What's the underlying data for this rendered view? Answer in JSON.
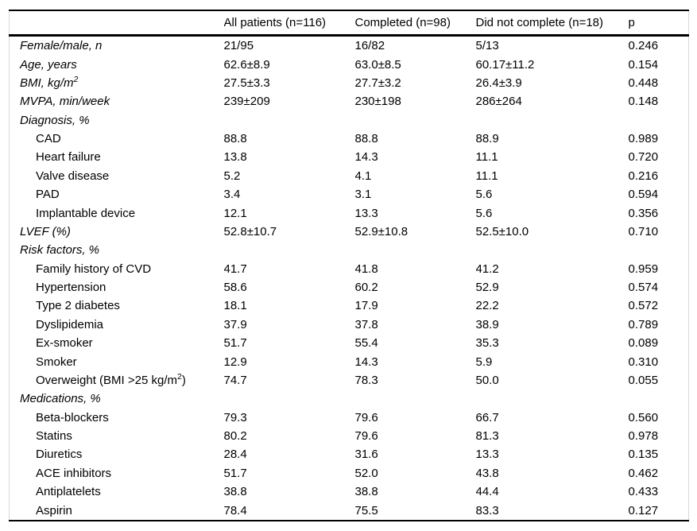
{
  "colors": {
    "rule": "#000000",
    "faint_border": "#d8d8d8",
    "text": "#000000",
    "background": "#ffffff"
  },
  "table": {
    "columns": [
      "",
      "All patients (n=116)",
      "Completed (n=98)",
      "Did not complete (n=18)",
      "p"
    ],
    "rows": [
      {
        "label": "Female/male, n",
        "kind": "param",
        "values": [
          "21/95",
          "16/82",
          "5/13",
          "0.246"
        ]
      },
      {
        "label": "Age, years",
        "kind": "param",
        "values": [
          "62.6±8.9",
          "63.0±8.5",
          "60.17±11.2",
          "0.154"
        ]
      },
      {
        "label": "BMI, kg/m^2^",
        "kind": "param",
        "values": [
          "27.5±3.3",
          "27.7±3.2",
          "26.4±3.9",
          "0.448"
        ]
      },
      {
        "label": "MVPA, min/week",
        "kind": "param",
        "values": [
          "239±209",
          "230±198",
          "286±264",
          "0.148"
        ]
      },
      {
        "label": "Diagnosis, %",
        "kind": "section",
        "values": [
          "",
          "",
          "",
          ""
        ]
      },
      {
        "label": "CAD",
        "kind": "sub",
        "values": [
          "88.8",
          "88.8",
          "88.9",
          "0.989"
        ]
      },
      {
        "label": "Heart failure",
        "kind": "sub",
        "values": [
          "13.8",
          "14.3",
          "11.1",
          "0.720"
        ]
      },
      {
        "label": "Valve disease",
        "kind": "sub",
        "values": [
          "5.2",
          "4.1",
          "11.1",
          "0.216"
        ]
      },
      {
        "label": "PAD",
        "kind": "sub",
        "values": [
          "3.4",
          "3.1",
          "5.6",
          "0.594"
        ]
      },
      {
        "label": "Implantable device",
        "kind": "sub",
        "values": [
          "12.1",
          "13.3",
          "5.6",
          "0.356"
        ]
      },
      {
        "label": "LVEF (%)",
        "kind": "param",
        "values": [
          "52.8±10.7",
          "52.9±10.8",
          "52.5±10.0",
          "0.710"
        ]
      },
      {
        "label": "Risk factors, %",
        "kind": "section",
        "values": [
          "",
          "",
          "",
          ""
        ]
      },
      {
        "label": "Family history of CVD",
        "kind": "sub",
        "values": [
          "41.7",
          "41.8",
          "41.2",
          "0.959"
        ]
      },
      {
        "label": "Hypertension",
        "kind": "sub",
        "values": [
          "58.6",
          "60.2",
          "52.9",
          "0.574"
        ]
      },
      {
        "label": "Type 2 diabetes",
        "kind": "sub",
        "values": [
          "18.1",
          "17.9",
          "22.2",
          "0.572"
        ]
      },
      {
        "label": "Dyslipidemia",
        "kind": "sub",
        "values": [
          "37.9",
          "37.8",
          "38.9",
          "0.789"
        ]
      },
      {
        "label": "Ex-smoker",
        "kind": "sub",
        "values": [
          "51.7",
          "55.4",
          "35.3",
          "0.089"
        ]
      },
      {
        "label": "Smoker",
        "kind": "sub",
        "values": [
          "12.9",
          "14.3",
          "5.9",
          "0.310"
        ]
      },
      {
        "label": "Overweight (BMI >25 kg/m^2^)",
        "kind": "sub",
        "values": [
          "74.7",
          "78.3",
          "50.0",
          "0.055"
        ]
      },
      {
        "label": "Medications, %",
        "kind": "section",
        "values": [
          "",
          "",
          "",
          ""
        ]
      },
      {
        "label": "Beta-blockers",
        "kind": "sub",
        "values": [
          "79.3",
          "79.6",
          "66.7",
          "0.560"
        ]
      },
      {
        "label": "Statins",
        "kind": "sub",
        "values": [
          "80.2",
          "79.6",
          "81.3",
          "0.978"
        ]
      },
      {
        "label": "Diuretics",
        "kind": "sub",
        "values": [
          "28.4",
          "31.6",
          "13.3",
          "0.135"
        ]
      },
      {
        "label": "ACE inhibitors",
        "kind": "sub",
        "values": [
          "51.7",
          "52.0",
          "43.8",
          "0.462"
        ]
      },
      {
        "label": "Antiplatelets",
        "kind": "sub",
        "values": [
          "38.8",
          "38.8",
          "44.4",
          "0.433"
        ]
      },
      {
        "label": "Aspirin",
        "kind": "sub",
        "values": [
          "78.4",
          "75.5",
          "83.3",
          "0.127"
        ]
      }
    ]
  }
}
